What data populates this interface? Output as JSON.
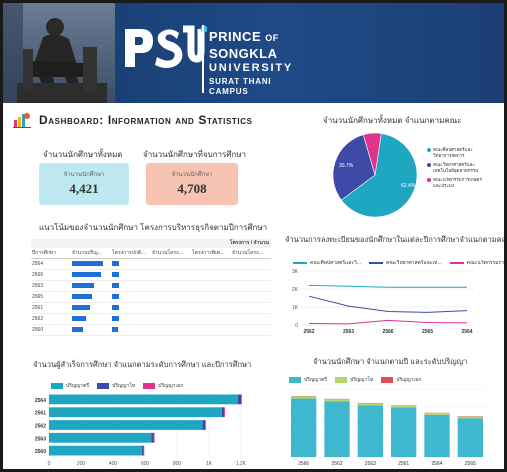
{
  "header": {
    "logo": "PSU",
    "uni_line1": "PRINCE",
    "uni_line1_small": "OF",
    "uni_line1b": "SONGKLA",
    "uni_line2": "UNIVERSITY",
    "uni_line3": "SURAT THANI",
    "uni_line4": "CAMPUS"
  },
  "dashboard_title": "Dashboard: Information and Statistics",
  "kpi": {
    "total_title": "จำนวนนักศึกษาทั้งหมด",
    "total_label": "จำนวนนักศึกษา",
    "total_value": "4,421",
    "graduated_title": "จำนวนนักศึกษาที่จบการศึกษา",
    "graduated_label": "จำนวนนักศึกษา",
    "graduated_value": "4,708"
  },
  "pie": {
    "title": "จำนวนนักศึกษาทั้งหมด จำแนกตามคณะ",
    "legend": [
      "คณะศิลปศาสตร์และวิทยาการจัดการ",
      "คณะวิทยาศาสตร์และเทคโนโลยีอุตสาหกรรม",
      "คณะนวัตกรรมการเกษตร และประมง"
    ],
    "label_left": "30.7%",
    "label_right": "62.4%"
  },
  "table": {
    "title": "แนวโน้มของจำนวนนักศึกษา โครงการบริหารธุรกิจตามปีการศึกษา",
    "group_header": "โครงการ / จำนวน",
    "columns": [
      "ปีการศึกษา",
      "จำนวนปริญ...",
      "โครงการปกติ...",
      "จำนวนโครง...",
      "โครงการพิเศ...",
      "จำนวนโครง..."
    ],
    "rows": [
      {
        "year": "2564",
        "v1": 0.85,
        "v2": 0.3
      },
      {
        "year": "2566",
        "v1": 0.8,
        "v2": 0.3
      },
      {
        "year": "2563",
        "v1": 0.6,
        "v2": 0.3
      },
      {
        "year": "2565",
        "v1": 0.55,
        "v2": 0.3
      },
      {
        "year": "2561",
        "v1": 0.5,
        "v2": 0.3
      },
      {
        "year": "2562",
        "v1": 0.4,
        "v2": 0.3
      },
      {
        "year": "2560",
        "v1": 0.3,
        "v2": 0.25
      }
    ]
  },
  "bar_title": "จำนวนผู้สำเร็จการศึกษา จำแนกตามระดับการศึกษา และปีการศึกษา",
  "colors": {
    "teal": "#1fa7c2",
    "navy": "#3d4aa8",
    "magenta": "#e0338c",
    "accent": "#1d3f75"
  },
  "chart_data": [
    {
      "type": "pie",
      "categories": [
        "คณะศิลปศาสตร์และวิทยาการจัดการ",
        "คณะวิทยาศาสตร์และเทคโนโลยีอุตสาหกรรม",
        "คณะนวัตกรรมการเกษตร และประมง"
      ],
      "values": [
        62.4,
        30.7,
        6.9
      ],
      "colors": [
        "#1fa7c2",
        "#3d4aa8",
        "#e0338c"
      ]
    },
    {
      "type": "line",
      "title": "จำนวนการลงทะเบียนของนักศึกษาในแต่ละปีการศึกษาจำแนกตามคณะ",
      "categories": [
        "2562",
        "2563",
        "2566",
        "2565",
        "2564"
      ],
      "series": [
        {
          "name": "คณะศิลปศาสตร์และวิ...",
          "values": [
            2200,
            2150,
            2100,
            2100,
            2100
          ],
          "color": "#1fa7c2"
        },
        {
          "name": "คณะวิทยาศาสตร์และเท...",
          "values": [
            1600,
            1050,
            750,
            700,
            800
          ],
          "color": "#3d4aa8"
        },
        {
          "name": "คณะนวัตกรรมการเกษตร...",
          "values": [
            80,
            60,
            260,
            140,
            120
          ],
          "color": "#e0338c"
        }
      ],
      "yticks": [
        "0",
        "1K",
        "2K",
        "3K"
      ],
      "ylim": [
        0,
        3000
      ]
    },
    {
      "type": "bar",
      "orientation": "horizontal",
      "title": "จำนวนผู้สำเร็จการศึกษา จำแนกตามระดับการศึกษา และปีการศึกษา",
      "categories": [
        "2564",
        "2561",
        "2562",
        "2563",
        "2560"
      ],
      "ylabels": [
        "2564",
        "2561",
        "2562",
        "2563",
        "2560"
      ],
      "series": [
        {
          "name": "ปริญญาตรี",
          "values": [
            1180,
            1080,
            960,
            640,
            580
          ],
          "color": "#1fa7c2"
        },
        {
          "name": "ปริญญาโท",
          "values": [
            20,
            15,
            15,
            15,
            10
          ],
          "color": "#3d4aa8"
        },
        {
          "name": "ปริญญาเอก",
          "values": [
            5,
            5,
            5,
            5,
            5
          ],
          "color": "#e0338c"
        }
      ],
      "xticks": [
        "0",
        "200",
        "400",
        "600",
        "800",
        "1K",
        "1.2K"
      ],
      "xlim": [
        0,
        1250
      ]
    },
    {
      "type": "bar",
      "orientation": "vertical",
      "stacked": true,
      "title": "จำนวนนักศึกษา จำแนกตามปี และระดับปริญญา",
      "categories": [
        "2566",
        "2562",
        "2563",
        "2561",
        "2564",
        "2565"
      ],
      "series": [
        {
          "name": "ปริญญาตรี",
          "values": [
            860,
            820,
            760,
            730,
            620,
            570
          ],
          "color": "#3fb8cf"
        },
        {
          "name": "ปริญญาโท",
          "values": [
            30,
            30,
            30,
            25,
            25,
            25
          ],
          "color": "#b7d36a"
        },
        {
          "name": "ปริญญาเอก",
          "values": [
            5,
            5,
            5,
            5,
            5,
            5
          ],
          "color": "#e05050"
        }
      ],
      "ylim": [
        0,
        1000
      ]
    }
  ]
}
